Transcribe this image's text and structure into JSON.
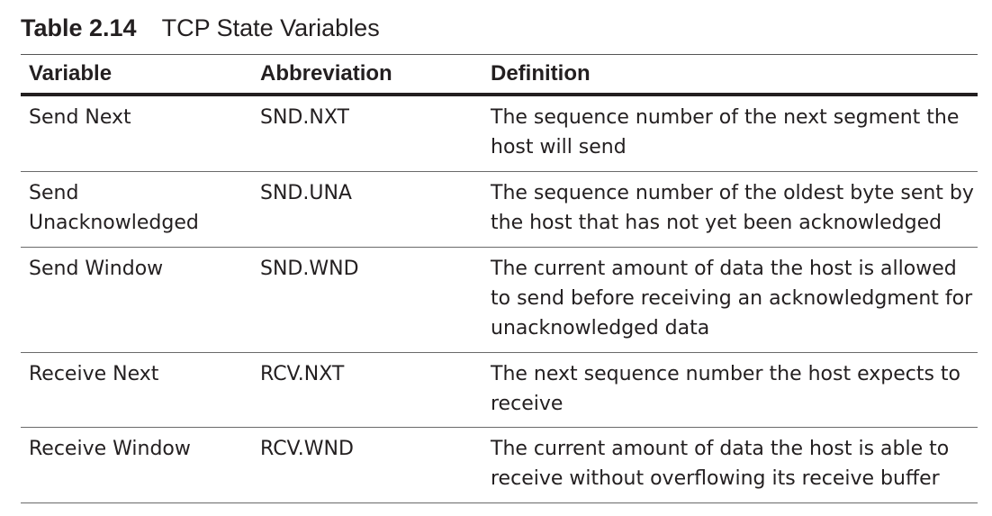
{
  "caption": {
    "number": "Table 2.14",
    "title": "TCP State Variables"
  },
  "table": {
    "headers": [
      "Variable",
      "Abbreviation",
      "Definition"
    ],
    "rows": [
      {
        "variable": "Send Next",
        "abbreviation": "SND.NXT",
        "definition": "The sequence number of the next segment the host will send"
      },
      {
        "variable": "Send Unacknowledged",
        "abbreviation": "SND.UNA",
        "definition": "The sequence number of the oldest byte sent by the host that has not yet been acknowledged"
      },
      {
        "variable": "Send Window",
        "abbreviation": "SND.WND",
        "definition": "The current amount of data the host is allowed to send before receiving an acknowledgment for unacknowledged data"
      },
      {
        "variable": "Receive Next",
        "abbreviation": "RCV.NXT",
        "definition": "The next sequence number the host expects to receive"
      },
      {
        "variable": "Receive Window",
        "abbreviation": "RCV.WND",
        "definition": "The current amount of data the host is able to receive without overflowing its receive buffer"
      }
    ]
  }
}
